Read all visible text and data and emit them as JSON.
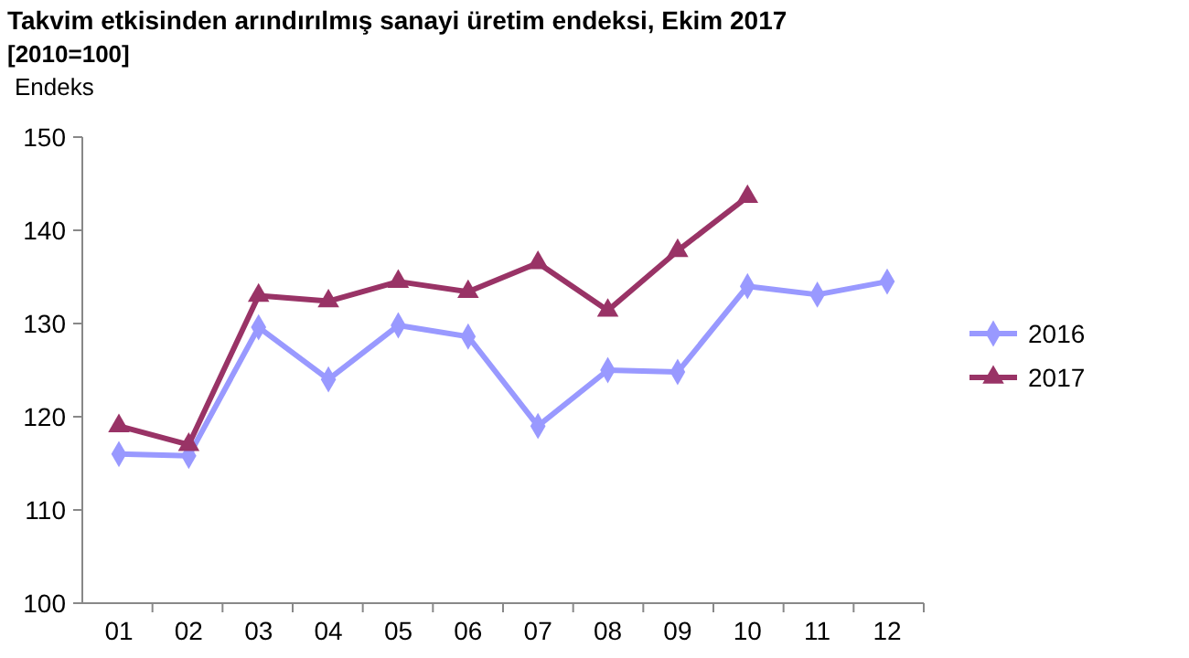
{
  "chart_data": {
    "type": "line",
    "title": "Takvim etkisinden arındırılmış sanayi üretim endeksi,  Ekim 2017",
    "subtitle": "[2010=100]",
    "ylabel": "Endeks",
    "categories": [
      "01",
      "02",
      "03",
      "04",
      "05",
      "06",
      "07",
      "08",
      "09",
      "10",
      "11",
      "12"
    ],
    "series": [
      {
        "name": "2016",
        "color": "#9999ff",
        "marker": "diamond",
        "values": [
          116,
          115.8,
          129.6,
          124,
          129.8,
          128.6,
          119,
          125,
          124.8,
          134,
          133.1,
          134.5
        ]
      },
      {
        "name": "2017",
        "color": "#993366",
        "marker": "triangle",
        "values": [
          119,
          117,
          133,
          132.4,
          134.5,
          133.4,
          136.5,
          131.4,
          137.8,
          143.6,
          null,
          null
        ]
      }
    ],
    "ylim": [
      100,
      150
    ],
    "yticks": [
      100,
      110,
      120,
      130,
      140,
      150
    ],
    "grid": false,
    "legend": "right",
    "line_style": "solid"
  }
}
